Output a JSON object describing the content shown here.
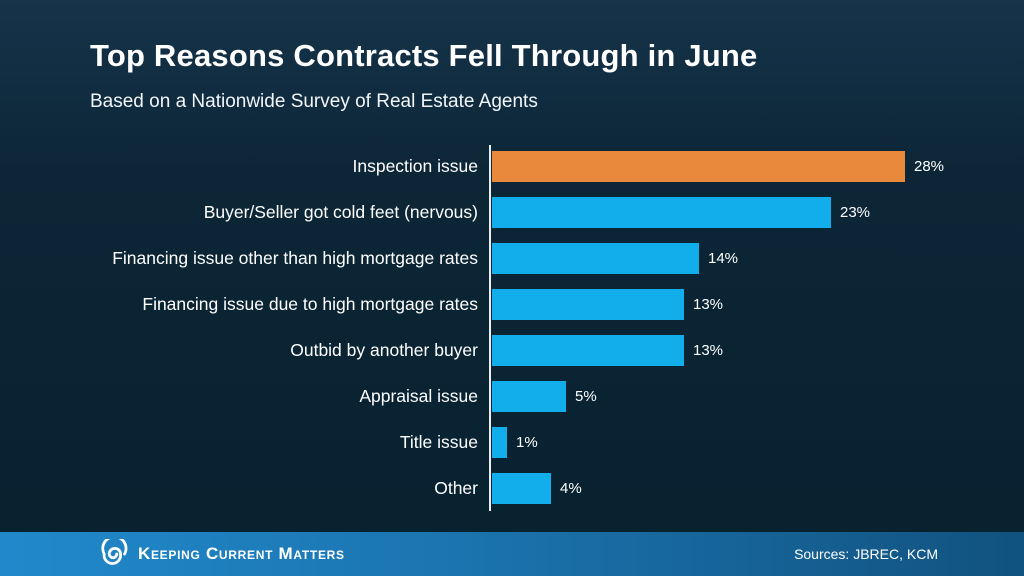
{
  "slide": {
    "title": "Top Reasons Contracts Fell Through in June",
    "subtitle": "Based on a Nationwide Survey of Real Estate Agents"
  },
  "chart_data": {
    "type": "bar",
    "orientation": "horizontal",
    "title": "Top Reasons Contracts Fell Through in June",
    "subtitle": "Based on a Nationwide Survey of Real Estate Agents",
    "categories": [
      "Inspection issue",
      "Buyer/Seller got cold feet (nervous)",
      "Financing issue other than high mortgage rates",
      "Financing issue due to high mortgage rates",
      "Outbid by another buyer",
      "Appraisal issue",
      "Title issue",
      "Other"
    ],
    "values": [
      28,
      23,
      14,
      13,
      13,
      5,
      1,
      4
    ],
    "unit": "%",
    "xlim": [
      0,
      28
    ],
    "grid": false,
    "legend": false,
    "highlight_index": 0,
    "colors": {
      "bar_default": "#12aeeb",
      "bar_highlight": "#e8893c",
      "axis": "#e9eef3",
      "background": "#0b2436",
      "text": "#ffffff"
    }
  },
  "footer": {
    "brand": "Keeping Current Matters",
    "logo_icon": "kcm-swirl-icon",
    "sources": "Sources: JBREC, KCM",
    "gradient_start": "#2189cb",
    "gradient_end": "#11527f"
  }
}
